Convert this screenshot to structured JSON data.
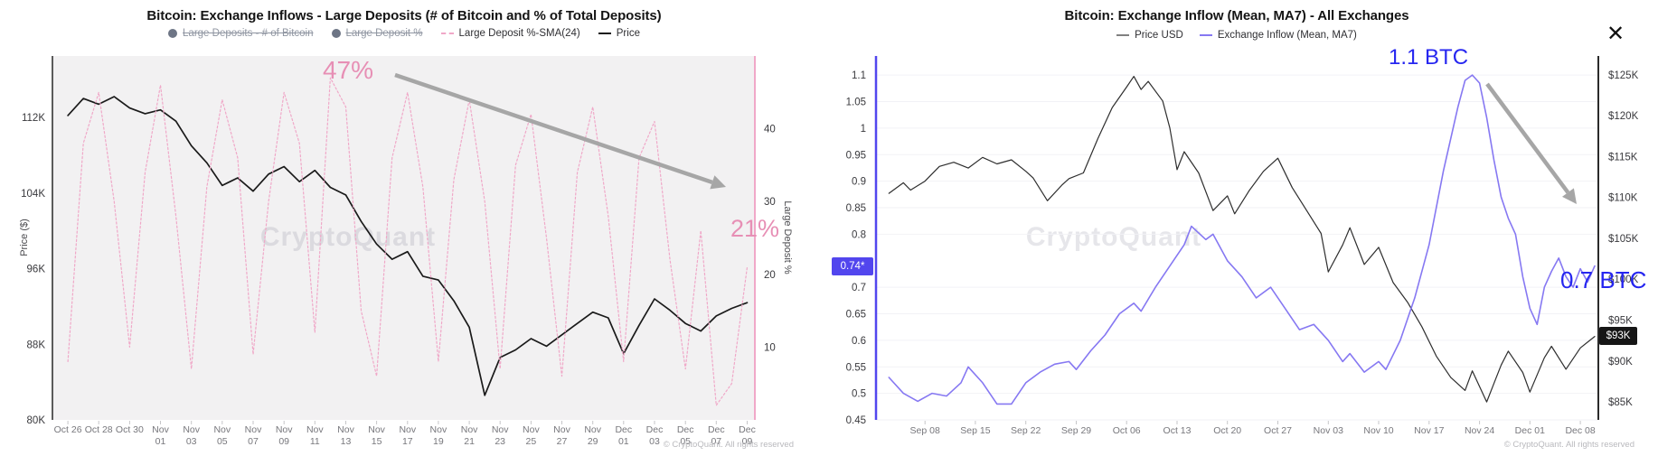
{
  "close_button": {
    "icon": "✕"
  },
  "charts": [
    {
      "title": "Bitcoin: Exchange Inflows - Large Deposits (# of Bitcoin and % of Total Deposits)",
      "legend": [
        {
          "label": "Large Deposits - # of Bitcoin",
          "marker": "dot",
          "color": "#6d7585",
          "disabled": true
        },
        {
          "label": "Large Deposit %",
          "marker": "dot",
          "color": "#6d7585",
          "disabled": true
        },
        {
          "label": "Large Deposit %-SMA(24)",
          "marker": "dashed-line",
          "color": "#f0a8c8",
          "disabled": false
        },
        {
          "label": "Price",
          "marker": "line",
          "color": "#1a1a1a",
          "disabled": false
        }
      ],
      "watermark": "CryptoQuant",
      "footer": "© CryptoQuant. All rights reserved",
      "annotations": [
        {
          "text": "47%",
          "color": "#e78fb5"
        },
        {
          "text": "21%",
          "color": "#e78fb5"
        }
      ]
    },
    {
      "title": "Bitcoin: Exchange Inflow (Mean, MA7) - All Exchanges",
      "legend": [
        {
          "label": "Price USD",
          "marker": "line",
          "color": "#808080",
          "disabled": false
        },
        {
          "label": "Exchange Inflow (Mean, MA7)",
          "marker": "line",
          "color": "#8678f2",
          "disabled": false
        }
      ],
      "watermark": "CryptoQuant",
      "footer": "© CryptoQuant. All rights reserved",
      "annotations": [
        {
          "text": "1.1 BTC",
          "color": "#2626f0"
        },
        {
          "text": "0.7 BTC",
          "color": "#2626f0"
        }
      ],
      "badges": [
        {
          "text": "0.74*",
          "bg": "#5246ee",
          "axis": "left"
        },
        {
          "text": "$93K",
          "bg": "#161616",
          "axis": "right"
        }
      ]
    }
  ],
  "chart_data": [
    {
      "type": "line",
      "title": "Bitcoin: Exchange Inflows - Large Deposits (# of Bitcoin and % of Total Deposits)",
      "x_axis": {
        "unit": "days since Oct 26",
        "lim": [
          -1,
          44.5
        ],
        "ticks": [
          {
            "d": 0,
            "label": [
              "Oct 26"
            ]
          },
          {
            "d": 2,
            "label": [
              "Oct 28"
            ]
          },
          {
            "d": 4,
            "label": [
              "Oct 30"
            ]
          },
          {
            "d": 6,
            "label": [
              "Nov",
              "01"
            ]
          },
          {
            "d": 8,
            "label": [
              "Nov",
              "03"
            ]
          },
          {
            "d": 10,
            "label": [
              "Nov",
              "05"
            ]
          },
          {
            "d": 12,
            "label": [
              "Nov",
              "07"
            ]
          },
          {
            "d": 14,
            "label": [
              "Nov",
              "09"
            ]
          },
          {
            "d": 16,
            "label": [
              "Nov",
              "11"
            ]
          },
          {
            "d": 18,
            "label": [
              "Nov",
              "13"
            ]
          },
          {
            "d": 20,
            "label": [
              "Nov",
              "15"
            ]
          },
          {
            "d": 22,
            "label": [
              "Nov",
              "17"
            ]
          },
          {
            "d": 24,
            "label": [
              "Nov",
              "19"
            ]
          },
          {
            "d": 26,
            "label": [
              "Nov",
              "21"
            ]
          },
          {
            "d": 28,
            "label": [
              "Nov",
              "23"
            ]
          },
          {
            "d": 30,
            "label": [
              "Nov",
              "25"
            ]
          },
          {
            "d": 32,
            "label": [
              "Nov",
              "27"
            ]
          },
          {
            "d": 34,
            "label": [
              "Nov",
              "29"
            ]
          },
          {
            "d": 36,
            "label": [
              "Dec",
              "01"
            ]
          },
          {
            "d": 38,
            "label": [
              "Dec",
              "03"
            ]
          },
          {
            "d": 40,
            "label": [
              "Dec",
              "05"
            ]
          },
          {
            "d": 42,
            "label": [
              "Dec",
              "07"
            ]
          },
          {
            "d": 44,
            "label": [
              "Dec",
              "09"
            ]
          }
        ]
      },
      "y_left": {
        "title": "Price ($)",
        "unit": "K USD",
        "lim": [
          80,
          118.5
        ],
        "ticks": [
          {
            "v": 112,
            "label": "112K"
          },
          {
            "v": 104,
            "label": "104K"
          },
          {
            "v": 96,
            "label": "96K"
          },
          {
            "v": 88,
            "label": "88K"
          },
          {
            "v": 80,
            "label": "80K"
          }
        ]
      },
      "y_right": {
        "title": "Large Deposit %",
        "unit": "%",
        "lim": [
          0,
          50
        ],
        "ticks": [
          {
            "v": 40,
            "label": "40"
          },
          {
            "v": 30,
            "label": "30"
          },
          {
            "v": 20,
            "label": "20"
          },
          {
            "v": 10,
            "label": "10"
          }
        ]
      },
      "series": [
        {
          "name": "Price",
          "slug": "price",
          "axis": "left",
          "color": "#1a1a1a",
          "width": 1.7,
          "dashed": false,
          "x": [
            0,
            1,
            2,
            3,
            4,
            5,
            6,
            7,
            8,
            9,
            10,
            11,
            12,
            13,
            14,
            15,
            16,
            17,
            18,
            19,
            20,
            21,
            22,
            23,
            24,
            25,
            26,
            27,
            28,
            29,
            30,
            31,
            32,
            33,
            34,
            35,
            36,
            37,
            38,
            39,
            40,
            41,
            42,
            43,
            44
          ],
          "values": [
            112.2,
            114.0,
            113.4,
            114.2,
            113.0,
            112.4,
            112.8,
            111.6,
            109.0,
            107.2,
            104.8,
            105.6,
            104.2,
            106.0,
            106.8,
            105.2,
            106.4,
            104.6,
            103.8,
            101.0,
            98.6,
            97.0,
            97.8,
            95.2,
            94.8,
            92.6,
            89.8,
            82.6,
            86.6,
            87.4,
            88.6,
            87.8,
            89.0,
            90.2,
            91.4,
            90.8,
            87.0,
            90.0,
            92.8,
            91.6,
            90.2,
            89.4,
            91.0,
            91.8,
            92.4
          ]
        },
        {
          "name": "Large Deposit %-SMA(24)",
          "slug": "large-deposit-pct-sma24",
          "axis": "right",
          "color": "#f0a8c8",
          "width": 1.2,
          "dashed": true,
          "x": [
            0,
            1,
            2,
            3,
            4,
            5,
            6,
            7,
            8,
            9,
            10,
            11,
            12,
            13,
            14,
            15,
            16,
            17,
            18,
            19,
            20,
            21,
            22,
            23,
            24,
            25,
            26,
            27,
            28,
            29,
            30,
            31,
            32,
            33,
            34,
            35,
            36,
            37,
            38,
            39,
            40,
            41,
            42,
            43,
            44
          ],
          "values": [
            8,
            38,
            45,
            30,
            10,
            34,
            46,
            28,
            7,
            32,
            44,
            36,
            9,
            30,
            45,
            38,
            12,
            47,
            43,
            15,
            6,
            36,
            45,
            32,
            8,
            33,
            44,
            30,
            7,
            35,
            42,
            25,
            6,
            34,
            43,
            28,
            8,
            36,
            41,
            22,
            7,
            26,
            2,
            5,
            21
          ]
        }
      ]
    },
    {
      "type": "line",
      "title": "Bitcoin: Exchange Inflow (Mean, MA7) - All Exchanges",
      "x_axis": {
        "unit": "days since Sep 03",
        "lim": [
          -1.8,
          98.5
        ],
        "ticks": [
          {
            "d": 5,
            "label": [
              "Sep 08"
            ]
          },
          {
            "d": 12,
            "label": [
              "Sep 15"
            ]
          },
          {
            "d": 19,
            "label": [
              "Sep 22"
            ]
          },
          {
            "d": 26,
            "label": [
              "Sep 29"
            ]
          },
          {
            "d": 33,
            "label": [
              "Oct 06"
            ]
          },
          {
            "d": 40,
            "label": [
              "Oct 13"
            ]
          },
          {
            "d": 47,
            "label": [
              "Oct 20"
            ]
          },
          {
            "d": 54,
            "label": [
              "Oct 27"
            ]
          },
          {
            "d": 61,
            "label": [
              "Nov 03"
            ]
          },
          {
            "d": 68,
            "label": [
              "Nov 10"
            ]
          },
          {
            "d": 75,
            "label": [
              "Nov 17"
            ]
          },
          {
            "d": 82,
            "label": [
              "Nov 24"
            ]
          },
          {
            "d": 89,
            "label": [
              "Dec 01"
            ]
          },
          {
            "d": 96,
            "label": [
              "Dec 08"
            ]
          }
        ]
      },
      "y_left": {
        "unit": "BTC",
        "lim": [
          0.45,
          1.136
        ],
        "ticks": [
          {
            "v": 1.1,
            "label": "1.1"
          },
          {
            "v": 1.05,
            "label": "1.05"
          },
          {
            "v": 1,
            "label": "1"
          },
          {
            "v": 0.95,
            "label": "0.95"
          },
          {
            "v": 0.9,
            "label": "0.9"
          },
          {
            "v": 0.85,
            "label": "0.85"
          },
          {
            "v": 0.8,
            "label": "0.8"
          },
          {
            "v": 0.7,
            "label": "0.7"
          },
          {
            "v": 0.65,
            "label": "0.65"
          },
          {
            "v": 0.6,
            "label": "0.6"
          },
          {
            "v": 0.55,
            "label": "0.55"
          },
          {
            "v": 0.5,
            "label": "0.5"
          },
          {
            "v": 0.45,
            "label": "0.45"
          }
        ],
        "current_value": "0.74*"
      },
      "y_right": {
        "unit": "K USD",
        "lim": [
          82.8,
          127.3
        ],
        "ticks": [
          {
            "v": 125,
            "label": "$125K"
          },
          {
            "v": 120,
            "label": "$120K"
          },
          {
            "v": 115,
            "label": "$115K"
          },
          {
            "v": 110,
            "label": "$110K"
          },
          {
            "v": 105,
            "label": "$105K"
          },
          {
            "v": 100,
            "label": "$100K"
          },
          {
            "v": 95,
            "label": "$95K"
          },
          {
            "v": 90,
            "label": "$90K"
          },
          {
            "v": 85,
            "label": "$85K"
          }
        ],
        "current_value": "$93K"
      },
      "series": [
        {
          "name": "Price USD",
          "slug": "price-usd",
          "axis": "right",
          "color": "#2e2e2e",
          "width": 1.2,
          "dashed": false,
          "x": [
            0,
            2,
            3,
            5,
            7,
            9,
            11,
            13,
            15,
            17,
            19,
            20,
            22,
            24,
            25,
            27,
            29,
            31,
            33,
            34,
            35,
            36,
            38,
            39,
            40,
            41,
            43,
            45,
            47,
            48,
            50,
            52,
            54,
            56,
            58,
            60,
            61,
            63,
            64,
            66,
            68,
            70,
            72,
            74,
            76,
            78,
            80,
            81,
            83,
            85,
            86,
            88,
            89,
            91,
            92,
            94,
            96,
            98
          ],
          "values": [
            110.5,
            111.8,
            110.9,
            112.0,
            113.8,
            114.3,
            113.6,
            114.9,
            114.1,
            114.6,
            113.2,
            112.4,
            109.6,
            111.5,
            112.3,
            113.0,
            117.2,
            121.0,
            123.5,
            124.8,
            123.2,
            124.2,
            121.8,
            118.5,
            113.4,
            115.6,
            113.0,
            108.4,
            110.2,
            108.0,
            110.8,
            113.2,
            114.8,
            111.2,
            108.4,
            105.6,
            100.9,
            104.2,
            106.3,
            101.8,
            103.9,
            99.6,
            97.2,
            94.2,
            90.6,
            88.0,
            86.4,
            88.8,
            85.0,
            89.5,
            91.2,
            88.6,
            86.2,
            90.4,
            91.8,
            89.0,
            91.6,
            93.0
          ]
        },
        {
          "name": "Exchange Inflow (Mean, MA7)",
          "slug": "exchange-inflow-ma7",
          "axis": "left",
          "color": "#8678f2",
          "width": 1.6,
          "dashed": false,
          "x": [
            0,
            2,
            4,
            6,
            8,
            10,
            11,
            13,
            15,
            17,
            19,
            21,
            23,
            25,
            26,
            28,
            30,
            32,
            34,
            35,
            37,
            39,
            41,
            42,
            44,
            45,
            47,
            49,
            51,
            53,
            55,
            57,
            59,
            61,
            63,
            64,
            66,
            68,
            69,
            71,
            73,
            75,
            77,
            79,
            80,
            81,
            82,
            83,
            84,
            85,
            86,
            87,
            88,
            89,
            90,
            91,
            92,
            93,
            94,
            95,
            96,
            97,
            98
          ],
          "values": [
            0.53,
            0.5,
            0.485,
            0.5,
            0.495,
            0.52,
            0.55,
            0.52,
            0.48,
            0.48,
            0.52,
            0.54,
            0.555,
            0.56,
            0.545,
            0.58,
            0.61,
            0.65,
            0.67,
            0.655,
            0.7,
            0.74,
            0.78,
            0.815,
            0.79,
            0.8,
            0.75,
            0.72,
            0.68,
            0.7,
            0.66,
            0.62,
            0.63,
            0.6,
            0.56,
            0.575,
            0.54,
            0.56,
            0.545,
            0.6,
            0.68,
            0.78,
            0.92,
            1.04,
            1.09,
            1.1,
            1.085,
            1.02,
            0.94,
            0.87,
            0.83,
            0.8,
            0.72,
            0.66,
            0.63,
            0.7,
            0.73,
            0.755,
            0.72,
            0.7,
            0.735,
            0.71,
            0.74
          ]
        }
      ]
    }
  ]
}
